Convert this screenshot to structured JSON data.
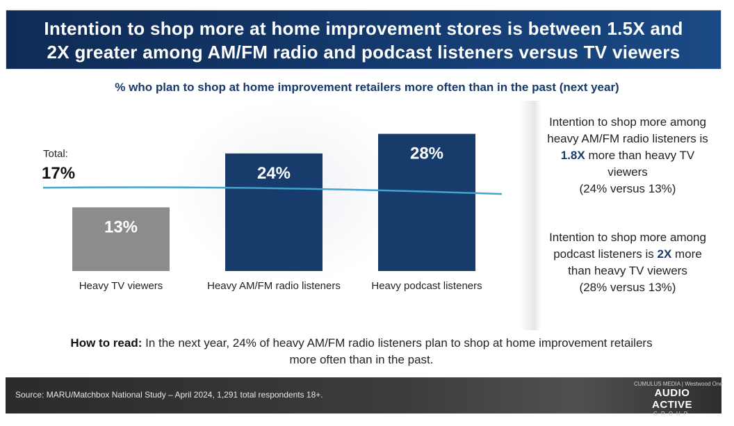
{
  "header": {
    "title_line1": "Intention to shop more at home improvement stores is between 1.5X and",
    "title_line2": "2X greater among AM/FM radio and podcast listeners versus TV viewers"
  },
  "subtitle": "% who plan to shop at home improvement retailers more often than in the past (next year)",
  "chart_data": {
    "type": "bar",
    "categories": [
      "Heavy TV viewers",
      "Heavy AM/FM radio listeners",
      "Heavy podcast listeners"
    ],
    "values": [
      13,
      24,
      28
    ],
    "value_labels": [
      "13%",
      "24%",
      "28%"
    ],
    "bar_colors": [
      "#8c8c8c",
      "#173c6c",
      "#173c6c"
    ],
    "reference_line": {
      "label": "Total:",
      "value": 17,
      "value_label": "17%",
      "color": "#3fa3cf"
    },
    "ylim": [
      0,
      30
    ]
  },
  "callouts": [
    {
      "before": "Intention to shop more among heavy AM/FM radio listeners is ",
      "highlight": "1.8X",
      "after": " more than heavy TV viewers",
      "comparison": "(24% versus 13%)"
    },
    {
      "before": "Intention to shop more among podcast listeners is ",
      "highlight": "2X",
      "after": " more than heavy TV viewers",
      "comparison": "(28% versus 13%)"
    }
  ],
  "how_to_read": {
    "label": "How to read:",
    "text": " In the next year, 24% of heavy AM/FM radio listeners plan to shop at home improvement retailers more often than in the past."
  },
  "footer": {
    "source": "Source: MARU/Matchbox National Study – April 2024, 1,291 total respondents 18+.",
    "logo_top": "CUMULUS MEDIA | Westwood One",
    "logo_main": "AUDIO ACTIVE",
    "logo_sub": "GROUP"
  },
  "colors": {
    "header_bg": "#143a6e",
    "accent": "#173a6a",
    "tv_bar": "#8c8c8c",
    "audio_bar": "#173c6c",
    "total_line": "#3fa3cf"
  }
}
